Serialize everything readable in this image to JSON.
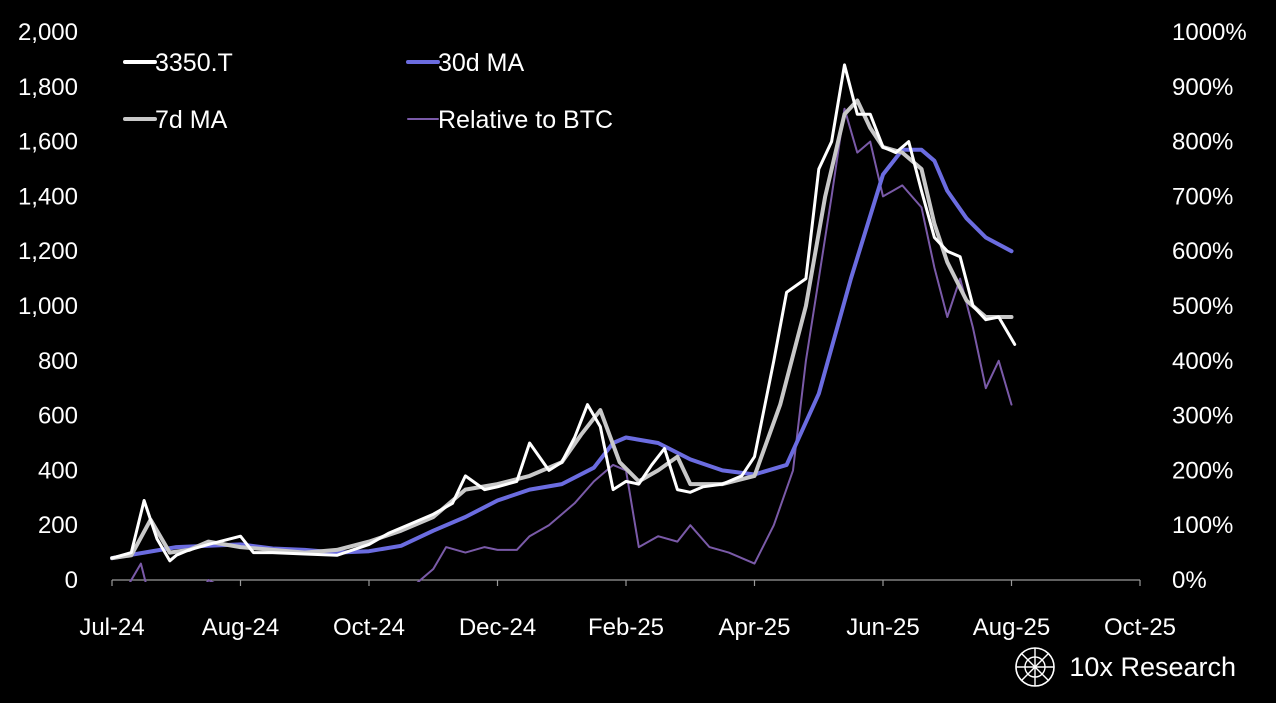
{
  "chart_data": {
    "type": "line",
    "title": "",
    "xlabel": "",
    "ylabel": "",
    "y2label": "",
    "x_ticks": [
      "Jul-24",
      "Aug-24",
      "Oct-24",
      "Dec-24",
      "Feb-25",
      "Apr-25",
      "Jun-25",
      "Aug-25",
      "Oct-25"
    ],
    "x_tick_index": [
      0,
      2,
      4,
      6,
      8,
      10,
      12,
      14,
      16
    ],
    "x_range": [
      0,
      16
    ],
    "ylim": [
      0,
      2000
    ],
    "y_ticks": [
      "0",
      "200",
      "400",
      "600",
      "800",
      "1,000",
      "1,200",
      "1,400",
      "1,600",
      "1,800",
      "2,000"
    ],
    "y2lim": [
      0,
      1000
    ],
    "y2_ticks": [
      "0%",
      "100%",
      "200%",
      "300%",
      "400%",
      "500%",
      "600%",
      "700%",
      "800%",
      "900%",
      "1000%"
    ],
    "legend_position": "top-left",
    "series": [
      {
        "name": "3350.T",
        "color": "#ffffff",
        "axis": "left",
        "x": [
          0,
          0.3,
          0.5,
          0.7,
          0.9,
          1.0,
          1.2,
          1.5,
          2.0,
          2.2,
          2.5,
          3.0,
          3.5,
          4.0,
          4.3,
          4.6,
          5.0,
          5.3,
          5.5,
          5.8,
          6.0,
          6.3,
          6.5,
          6.8,
          7.0,
          7.2,
          7.4,
          7.6,
          7.8,
          8.0,
          8.2,
          8.4,
          8.6,
          8.8,
          9.0,
          9.2,
          9.5,
          9.8,
          10.0,
          10.3,
          10.5,
          10.8,
          11.0,
          11.2,
          11.4,
          11.6,
          11.8,
          12.0,
          12.2,
          12.4,
          12.6,
          12.8,
          13.0,
          13.2,
          13.4,
          13.6,
          13.8,
          14.0,
          14.05
        ],
        "values": [
          80,
          100,
          290,
          150,
          70,
          90,
          110,
          130,
          160,
          100,
          100,
          95,
          90,
          130,
          170,
          200,
          240,
          280,
          380,
          330,
          340,
          360,
          500,
          400,
          430,
          520,
          640,
          560,
          330,
          360,
          350,
          420,
          480,
          330,
          320,
          340,
          350,
          380,
          450,
          800,
          1050,
          1100,
          1500,
          1600,
          1880,
          1700,
          1700,
          1580,
          1560,
          1600,
          1420,
          1250,
          1200,
          1180,
          1000,
          950,
          960,
          880,
          860
        ]
      },
      {
        "name": "30d MA",
        "color": "#6b6ce0",
        "axis": "left",
        "x": [
          0,
          0.5,
          1.0,
          1.5,
          2.0,
          2.5,
          3.0,
          3.5,
          4.0,
          4.5,
          5.0,
          5.5,
          6.0,
          6.5,
          7.0,
          7.5,
          7.8,
          8.0,
          8.5,
          9.0,
          9.5,
          10.0,
          10.5,
          11.0,
          11.5,
          12.0,
          12.3,
          12.6,
          12.8,
          13.0,
          13.3,
          13.6,
          14.0
        ],
        "values": [
          80,
          100,
          120,
          125,
          130,
          115,
          110,
          100,
          105,
          125,
          180,
          230,
          290,
          330,
          350,
          410,
          500,
          520,
          500,
          440,
          400,
          385,
          420,
          680,
          1100,
          1480,
          1570,
          1570,
          1530,
          1420,
          1320,
          1250,
          1200
        ]
      },
      {
        "name": "7d MA",
        "color": "#c8c8c8",
        "axis": "left",
        "x": [
          0,
          0.3,
          0.6,
          0.9,
          1.2,
          1.5,
          2.0,
          2.5,
          3.0,
          3.5,
          4.0,
          4.5,
          5.0,
          5.5,
          6.0,
          6.5,
          7.0,
          7.3,
          7.6,
          7.9,
          8.2,
          8.5,
          8.8,
          9.0,
          9.5,
          10.0,
          10.4,
          10.8,
          11.1,
          11.4,
          11.6,
          11.8,
          12.0,
          12.3,
          12.6,
          12.8,
          13.0,
          13.3,
          13.6,
          14.0
        ],
        "values": [
          80,
          90,
          220,
          100,
          110,
          140,
          120,
          110,
          100,
          110,
          140,
          180,
          230,
          330,
          350,
          380,
          430,
          530,
          620,
          430,
          360,
          400,
          450,
          350,
          350,
          380,
          640,
          1000,
          1400,
          1700,
          1750,
          1650,
          1580,
          1560,
          1500,
          1300,
          1160,
          1020,
          960,
          960
        ]
      },
      {
        "name": "Relative to BTC",
        "color": "#7a5aa8",
        "axis": "right",
        "x": [
          0,
          0.25,
          0.45,
          0.6,
          0.8,
          1.2,
          1.5,
          2.0,
          2.5,
          3.0,
          3.5,
          4.0,
          4.3,
          4.7,
          5.0,
          5.2,
          5.5,
          5.8,
          6.0,
          6.3,
          6.5,
          6.8,
          7.0,
          7.2,
          7.5,
          7.8,
          8.0,
          8.2,
          8.5,
          8.8,
          9.0,
          9.3,
          9.6,
          10.0,
          10.3,
          10.6,
          10.8,
          11.0,
          11.2,
          11.4,
          11.6,
          11.8,
          12.0,
          12.3,
          12.6,
          12.8,
          13.0,
          13.2,
          13.4,
          13.6,
          13.8,
          14.0
        ],
        "values": [
          -30,
          -10,
          30,
          -40,
          -80,
          -60,
          0,
          -30,
          -40,
          -40,
          -40,
          -30,
          -20,
          -10,
          20,
          60,
          50,
          60,
          55,
          55,
          80,
          100,
          120,
          140,
          180,
          210,
          200,
          60,
          80,
          70,
          100,
          60,
          50,
          30,
          100,
          200,
          400,
          550,
          700,
          860,
          780,
          800,
          700,
          720,
          680,
          570,
          480,
          550,
          460,
          350,
          400,
          320
        ]
      }
    ]
  },
  "brand": {
    "name": "10x Research"
  }
}
